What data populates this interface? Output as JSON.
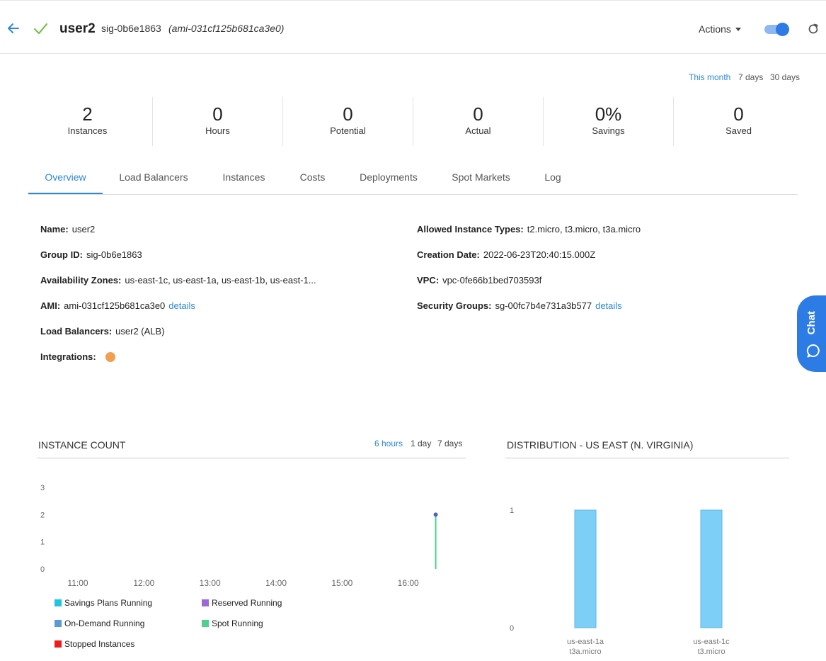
{
  "header": {
    "title": "user2",
    "group_id": "sig-0b6e1863",
    "ami": "(ami-031cf125b681ca3e0)",
    "actions_label": "Actions",
    "toggle_on": true
  },
  "periods": [
    {
      "label": "This month",
      "active": true
    },
    {
      "label": "7 days",
      "active": false
    },
    {
      "label": "30 days",
      "active": false
    }
  ],
  "stats": [
    {
      "value": "2",
      "label": "Instances"
    },
    {
      "value": "0",
      "label": "Hours"
    },
    {
      "value": "0",
      "label": "Potential"
    },
    {
      "value": "0",
      "label": "Actual"
    },
    {
      "value": "0%",
      "label": "Savings"
    },
    {
      "value": "0",
      "label": "Saved"
    }
  ],
  "tabs": [
    {
      "label": "Overview",
      "active": true
    },
    {
      "label": "Load Balancers"
    },
    {
      "label": "Instances"
    },
    {
      "label": "Costs"
    },
    {
      "label": "Deployments"
    },
    {
      "label": "Spot Markets"
    },
    {
      "label": "Log"
    }
  ],
  "details": {
    "name": {
      "key": "Name:",
      "value": "user2"
    },
    "group_id": {
      "key": "Group ID:",
      "value": "sig-0b6e1863"
    },
    "zones": {
      "key": "Availability Zones:",
      "value": "us-east-1c, us-east-1a, us-east-1b, us-east-1..."
    },
    "ami": {
      "key": "AMI:",
      "value": "ami-031cf125b681ca3e0",
      "link": "details"
    },
    "load_balancers": {
      "key": "Load Balancers:",
      "value": "user2 (ALB)"
    },
    "integrations": {
      "key": "Integrations:"
    },
    "instance_types": {
      "key": "Allowed Instance Types:",
      "value": "t2.micro, t3.micro, t3a.micro"
    },
    "creation_date": {
      "key": "Creation Date:",
      "value": "2022-06-23T20:40:15.000Z"
    },
    "vpc": {
      "key": "VPC:",
      "value": "vpc-0fe66b1bed703593f"
    },
    "security_groups": {
      "key": "Security Groups:",
      "value": "sg-00fc7b4e731a3b577",
      "link": "details"
    }
  },
  "chat": {
    "label": "Chat"
  },
  "instance_count": {
    "title": "INSTANCE COUNT",
    "ranges": [
      {
        "label": "6 hours",
        "active": true
      },
      {
        "label": "1 day",
        "active": false
      },
      {
        "label": "7 days",
        "active": false
      }
    ],
    "legend": [
      {
        "label": "Savings Plans Running",
        "color": "#1ec6e0"
      },
      {
        "label": "Reserved Running",
        "color": "#9b6ad6"
      },
      {
        "label": "On-Demand Running",
        "color": "#5b9bd5"
      },
      {
        "label": "Spot Running",
        "color": "#4cd18e"
      },
      {
        "label": "Stopped Instances",
        "color": "#ee1c1c"
      }
    ]
  },
  "distribution": {
    "title": "DISTRIBUTION - US EAST (N. VIRGINIA)"
  },
  "chart_data": [
    {
      "type": "line",
      "title": "INSTANCE COUNT",
      "x_ticks": [
        "11:00",
        "12:00",
        "13:00",
        "14:00",
        "15:00",
        "16:00"
      ],
      "y_ticks": [
        "0",
        "1",
        "2",
        "3"
      ],
      "ylim": [
        0,
        3
      ],
      "series": [
        {
          "name": "Spot Running",
          "color": "#4cd18e",
          "points": [
            {
              "x": "16:25",
              "y": 0
            },
            {
              "x": "16:25",
              "y": 2
            }
          ]
        }
      ],
      "grid": false,
      "legend": "bottom"
    },
    {
      "type": "bar",
      "title": "DISTRIBUTION - US EAST (N. VIRGINIA)",
      "categories": [
        [
          "us-east-1a",
          "t3a.micro"
        ],
        [
          "us-east-1c",
          "t3.micro"
        ]
      ],
      "values": [
        1,
        1
      ],
      "y_ticks": [
        "0",
        "1"
      ],
      "ylim": [
        0,
        1
      ],
      "color": "#7dcff7"
    }
  ]
}
